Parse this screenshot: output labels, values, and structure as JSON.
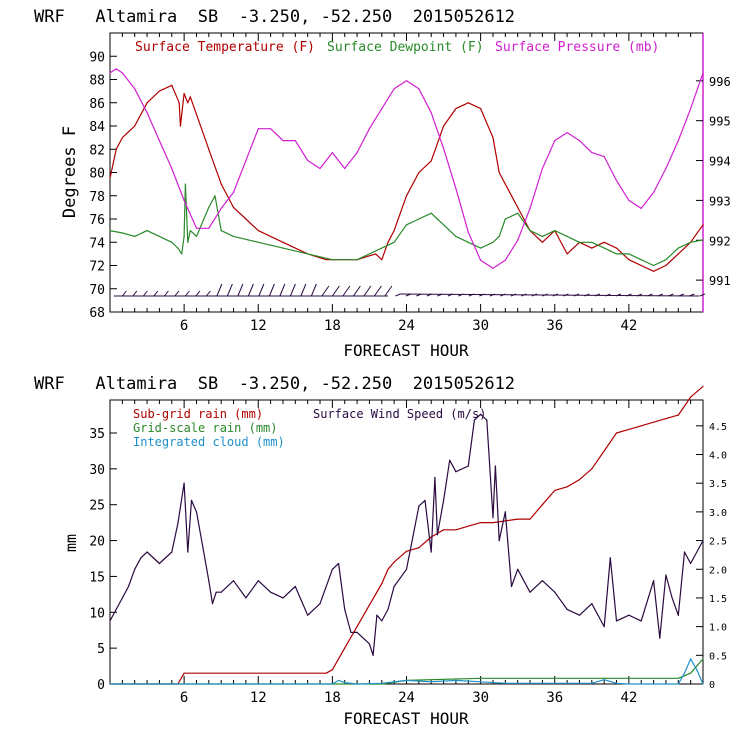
{
  "chart_data": [
    {
      "type": "line",
      "title": "WRF   Altamira  SB  -3.250, -52.250  2015052612",
      "xlabel": "FORECAST HOUR",
      "ylabel": "Degrees F",
      "xlim": [
        0,
        48
      ],
      "x_ticks": [
        6,
        12,
        18,
        24,
        30,
        36,
        42
      ],
      "ylim": [
        68,
        92
      ],
      "y_ticks": [
        68,
        70,
        72,
        74,
        76,
        78,
        80,
        82,
        84,
        86,
        88,
        90
      ],
      "y2lim": [
        990.2,
        997.2
      ],
      "y2_ticks": [
        991,
        992,
        993,
        994,
        995,
        996
      ],
      "legend": [
        "Surface Temperature (F)",
        "Surface Dewpoint (F)",
        "Surface Pressure (mb)"
      ],
      "series": [
        {
          "name": "Surface Temperature (F)",
          "color": "#b00000",
          "axis": "left",
          "x": [
            0,
            0.5,
            1,
            2,
            3,
            4,
            5,
            5.6,
            5.7,
            6,
            6.3,
            6.5,
            7,
            8,
            9,
            10,
            11,
            12,
            14,
            16,
            17.5,
            18,
            20,
            21.5,
            22,
            22.5,
            23,
            23.5,
            24,
            25,
            26,
            27,
            28,
            29,
            30,
            31,
            31.5,
            32,
            33,
            34,
            35,
            36,
            37,
            38,
            39,
            40,
            41,
            42,
            43,
            44,
            45,
            46,
            47,
            48
          ],
          "y": [
            79.5,
            82,
            83,
            84,
            86,
            87,
            87.5,
            86,
            84,
            86.8,
            86,
            86.5,
            85,
            82,
            79,
            77,
            76,
            75,
            74,
            73,
            72.5,
            72.5,
            72.5,
            73,
            72.5,
            74,
            75,
            76.5,
            78,
            80,
            81,
            84,
            85.5,
            86,
            85.5,
            83,
            80,
            79,
            77,
            75,
            74,
            75,
            73,
            74,
            73.5,
            74,
            73.5,
            72.5,
            72,
            71.5,
            72,
            73,
            74,
            75.5
          ]
        },
        {
          "name": "Surface Dewpoint (F)",
          "color": "#2a8a2a",
          "axis": "left",
          "x": [
            0,
            1,
            2,
            3,
            4,
            5,
            5.5,
            5.8,
            6,
            6.1,
            6.3,
            6.5,
            7,
            8,
            8.5,
            9,
            10,
            12,
            14,
            16,
            18,
            20,
            22,
            23,
            24,
            25,
            26,
            26.5,
            27,
            28,
            29,
            30,
            31,
            31.5,
            32,
            33,
            34,
            35,
            36,
            37,
            38,
            39,
            40,
            41,
            42,
            43,
            44,
            45,
            46,
            47,
            48
          ],
          "y": [
            75,
            74.8,
            74.5,
            75,
            74.5,
            74,
            73.5,
            73,
            74.5,
            79,
            74,
            75,
            74.5,
            77,
            78,
            75,
            74.5,
            74,
            73.5,
            73,
            72.5,
            72.5,
            73.5,
            74,
            75.5,
            76,
            76.5,
            76,
            75.5,
            74.5,
            74,
            73.5,
            74,
            74.5,
            76,
            76.5,
            75,
            74.5,
            75,
            74.5,
            74,
            74,
            73.5,
            73,
            73,
            72.5,
            72,
            72.5,
            73.5,
            74,
            74.2
          ]
        },
        {
          "name": "Surface Pressure (mb)",
          "color": "#d020d0",
          "axis": "right",
          "x": [
            0,
            0.5,
            1,
            2,
            3,
            4,
            5,
            6,
            7,
            8,
            9,
            10,
            11,
            12,
            13,
            14,
            15,
            16,
            17,
            18,
            19,
            20,
            21,
            22,
            23,
            24,
            25,
            26,
            27,
            28,
            29,
            30,
            31,
            32,
            33,
            34,
            35,
            36,
            37,
            38,
            39,
            40,
            41,
            42,
            43,
            44,
            45,
            46,
            47,
            48
          ],
          "y": [
            996.2,
            996.3,
            996.2,
            995.8,
            995.2,
            994.5,
            993.8,
            993,
            992.3,
            992.3,
            992.8,
            993.2,
            994,
            994.8,
            994.8,
            994.5,
            994.5,
            994,
            993.8,
            994.2,
            993.8,
            994.2,
            994.8,
            995.3,
            995.8,
            996,
            995.8,
            995.2,
            994.3,
            993.3,
            992.2,
            991.5,
            991.3,
            991.5,
            992,
            992.8,
            993.8,
            994.5,
            994.7,
            994.5,
            994.2,
            994.1,
            993.5,
            993,
            992.8,
            993.2,
            993.8,
            994.5,
            995.3,
            996.2
          ]
        }
      ]
    },
    {
      "type": "line",
      "title": "WRF   Altamira  SB  -3.250, -52.250  2015052612",
      "xlabel": "FORECAST HOUR",
      "ylabel": "mm",
      "xlim": [
        0,
        48
      ],
      "x_ticks": [
        6,
        12,
        18,
        24,
        30,
        36,
        42
      ],
      "ylim": [
        0,
        39.6
      ],
      "y_ticks": [
        0,
        5,
        10,
        15,
        20,
        25,
        30,
        35
      ],
      "y2lim": [
        0,
        4.95
      ],
      "y2_ticks": [
        0,
        0.5,
        1.0,
        1.5,
        2.0,
        2.5,
        3.0,
        3.5,
        4.0,
        4.5
      ],
      "legend": [
        "Sub-grid rain (mm)",
        "Surface Wind Speed (m/s)",
        "Grid-scale rain (mm)",
        "Integrated cloud (mm)"
      ],
      "series": [
        {
          "name": "Sub-grid rain (mm)",
          "color": "#b00000",
          "axis": "left",
          "x": [
            0,
            5.5,
            6,
            17.5,
            18,
            19,
            20,
            21,
            22,
            22.5,
            23,
            24,
            25,
            26,
            27,
            28,
            30,
            31,
            33,
            34,
            35,
            36,
            37,
            38,
            39,
            40,
            41,
            42,
            43,
            44,
            45,
            46,
            47,
            48
          ],
          "y": [
            0,
            0,
            1.5,
            1.5,
            2,
            5,
            8,
            11,
            14,
            16,
            17,
            18.5,
            19,
            20.5,
            21.5,
            21.5,
            22.5,
            22.5,
            23,
            23,
            25,
            27,
            27.5,
            28.5,
            30,
            32.5,
            35,
            35.5,
            36,
            36.5,
            37,
            37.5,
            40,
            41.5
          ]
        },
        {
          "name": "Grid-scale rain (mm)",
          "color": "#2a8a2a",
          "axis": "left",
          "x": [
            0,
            22,
            24,
            30,
            40,
            46,
            47,
            48
          ],
          "y": [
            0,
            0,
            0.5,
            0.8,
            0.8,
            0.8,
            1.5,
            3.5
          ]
        },
        {
          "name": "Integrated cloud (mm)",
          "color": "#1e90c8",
          "axis": "left",
          "x": [
            0,
            18,
            18.5,
            19,
            20,
            22,
            24,
            26,
            28,
            30,
            32,
            39,
            40,
            41,
            42,
            46,
            46.5,
            47,
            47.5,
            48
          ],
          "y": [
            0,
            0,
            0.5,
            0.2,
            0,
            0.1,
            0.5,
            0.3,
            0.5,
            0.3,
            0.1,
            0.1,
            0.6,
            0.1,
            0,
            0,
            1.5,
            3.5,
            2,
            0
          ]
        },
        {
          "name": "Surface Wind Speed (m/s)",
          "color": "#2a0a40",
          "axis": "right",
          "x": [
            0,
            0.5,
            1,
            1.5,
            2,
            2.5,
            3,
            4,
            5,
            5.5,
            6,
            6.3,
            6.6,
            7,
            7.5,
            8,
            8.3,
            8.6,
            9,
            10,
            11,
            12,
            13,
            14,
            15,
            16,
            17,
            18,
            18.5,
            19,
            19.5,
            20,
            21,
            21.3,
            21.6,
            22,
            22.5,
            23,
            24,
            25,
            25.5,
            26,
            26.3,
            26.5,
            27,
            27.5,
            28,
            29,
            29.5,
            30,
            30.5,
            31,
            31.2,
            31.5,
            32,
            32.5,
            33,
            34,
            35,
            36,
            37,
            38,
            39,
            40,
            40.5,
            41,
            42,
            43,
            44,
            44.5,
            45,
            45.5,
            46,
            46.5,
            47,
            48
          ],
          "y": [
            1.1,
            1.3,
            1.5,
            1.7,
            2.0,
            2.2,
            2.3,
            2.1,
            2.3,
            2.8,
            3.5,
            2.3,
            3.2,
            3.0,
            2.4,
            1.8,
            1.4,
            1.6,
            1.6,
            1.8,
            1.5,
            1.8,
            1.6,
            1.5,
            1.7,
            1.2,
            1.4,
            2.0,
            2.1,
            1.3,
            0.9,
            0.9,
            0.7,
            0.5,
            1.2,
            1.1,
            1.3,
            1.7,
            2.0,
            3.1,
            3.2,
            2.3,
            3.6,
            2.6,
            3.2,
            3.9,
            3.7,
            3.8,
            4.6,
            4.7,
            4.6,
            2.9,
            3.8,
            2.5,
            3.0,
            1.7,
            2.0,
            1.6,
            1.8,
            1.6,
            1.3,
            1.2,
            1.4,
            1.0,
            2.2,
            1.1,
            1.2,
            1.1,
            1.8,
            0.8,
            1.9,
            1.5,
            1.2,
            2.3,
            2.1,
            2.5
          ]
        }
      ]
    }
  ]
}
